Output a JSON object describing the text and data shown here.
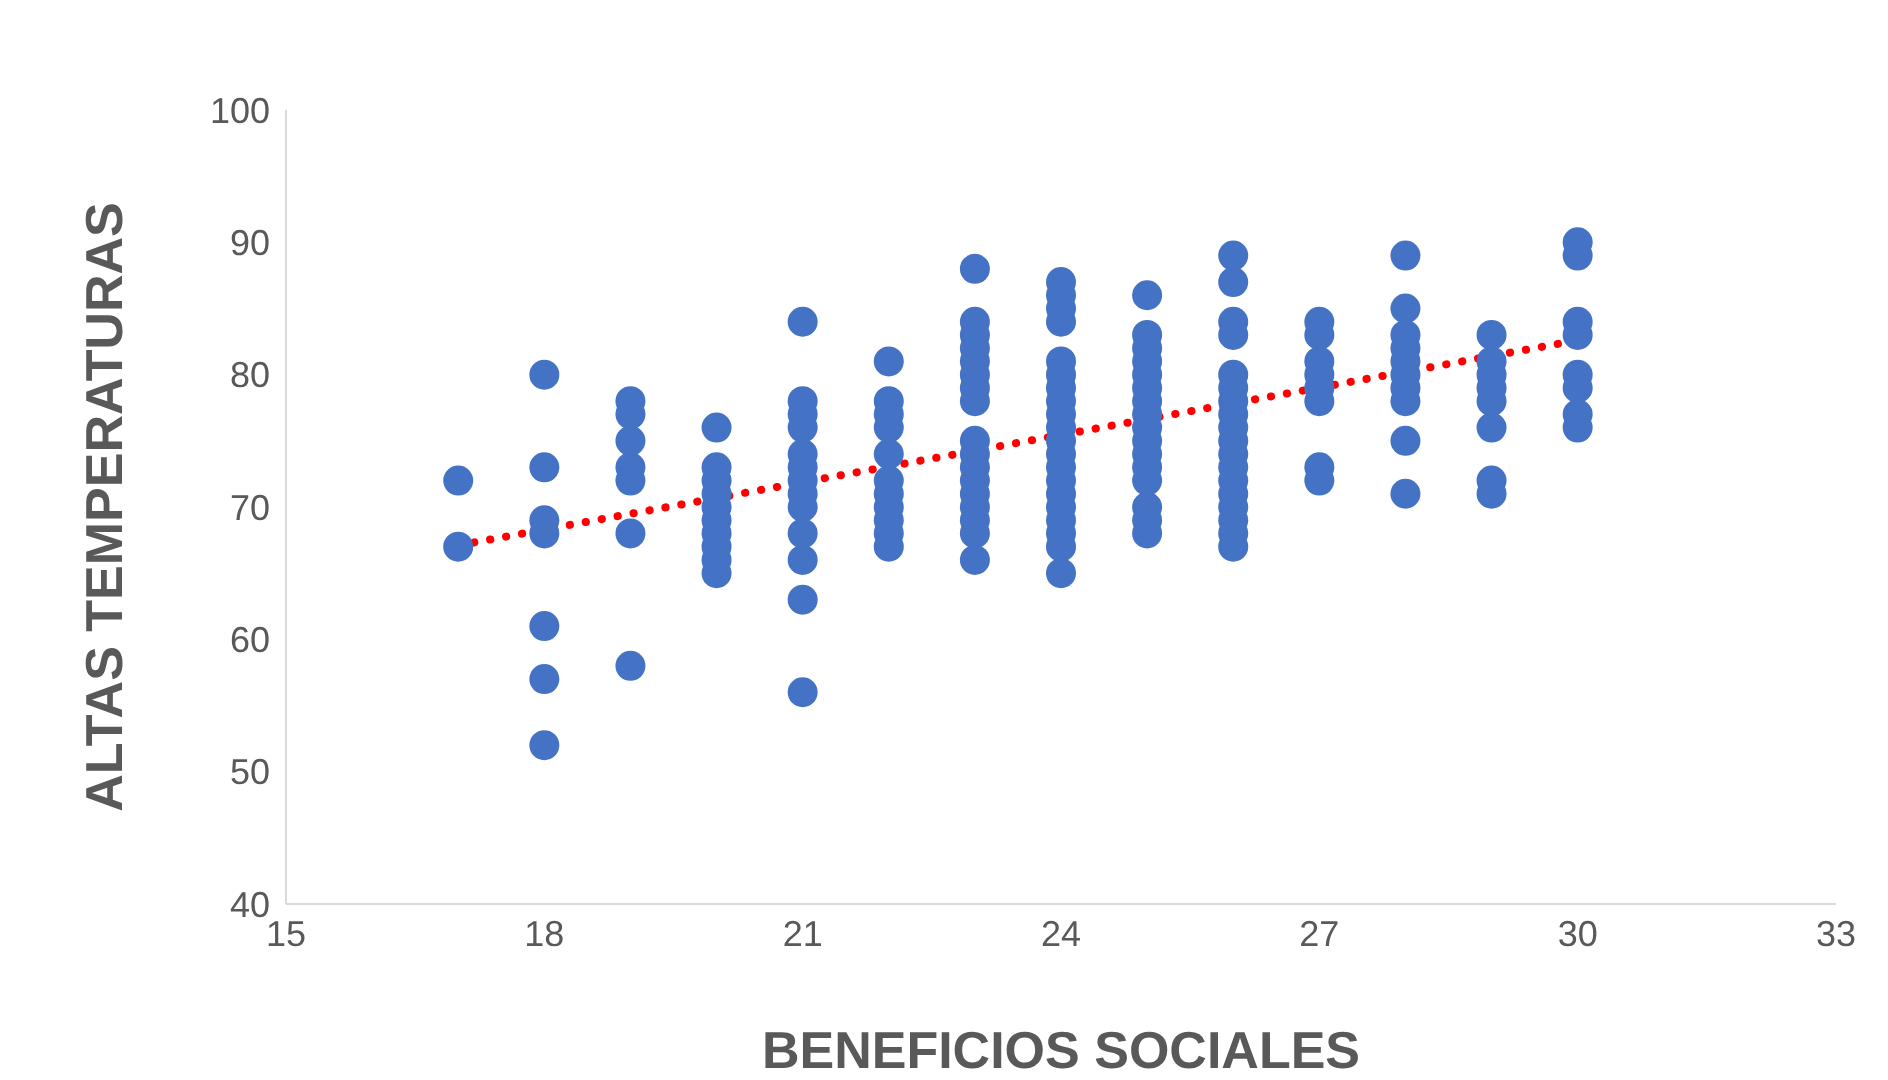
{
  "chart_data": {
    "type": "scatter",
    "xlabel": "BENEFICIOS SOCIALES",
    "ylabel": "ALTAS TEMPERATURAS",
    "xlim": [
      15,
      33
    ],
    "xticks": [
      15,
      18,
      21,
      24,
      27,
      30,
      33
    ],
    "ylim": [
      40,
      100
    ],
    "yticks": [
      40,
      50,
      60,
      70,
      80,
      90,
      100
    ],
    "marker": "circle",
    "series": [
      {
        "type": "scatter",
        "color": "#4472c4",
        "x": [
          17,
          17,
          18,
          18,
          18,
          18,
          18,
          18,
          18,
          19,
          19,
          19,
          19,
          19,
          19,
          19,
          20,
          20,
          20,
          20,
          20,
          20,
          20,
          20,
          20,
          20,
          21,
          21,
          21,
          21,
          21,
          21,
          21,
          21,
          21,
          21,
          21,
          21,
          21,
          22,
          22,
          22,
          22,
          22,
          22,
          22,
          22,
          22,
          22,
          22,
          23,
          23,
          23,
          23,
          23,
          23,
          23,
          23,
          23,
          23,
          23,
          23,
          23,
          23,
          23,
          23,
          23,
          24,
          24,
          24,
          24,
          24,
          24,
          24,
          24,
          24,
          24,
          24,
          24,
          24,
          24,
          24,
          24,
          24,
          24,
          24,
          24,
          25,
          25,
          25,
          25,
          25,
          25,
          25,
          25,
          25,
          25,
          25,
          25,
          25,
          25,
          25,
          25,
          26,
          26,
          26,
          26,
          26,
          26,
          26,
          26,
          26,
          26,
          26,
          26,
          26,
          26,
          26,
          26,
          26,
          26,
          27,
          27,
          27,
          27,
          27,
          27,
          27,
          27,
          28,
          28,
          28,
          28,
          28,
          28,
          28,
          28,
          28,
          28,
          29,
          29,
          29,
          29,
          29,
          29,
          29,
          29,
          30,
          30,
          30,
          30,
          30,
          30,
          30,
          30
        ],
        "values": [
          72,
          67,
          80,
          73,
          69,
          68,
          61,
          57,
          52,
          78,
          77,
          75,
          73,
          72,
          68,
          58,
          76,
          73,
          72,
          71,
          70,
          69,
          68,
          67,
          66,
          65,
          84,
          78,
          77,
          76,
          74,
          73,
          72,
          71,
          70,
          68,
          66,
          63,
          56,
          81,
          78,
          77,
          76,
          74,
          72,
          71,
          70,
          69,
          68,
          67,
          88,
          84,
          83,
          82,
          81,
          80,
          79,
          78,
          75,
          74,
          73,
          72,
          71,
          70,
          69,
          68,
          66,
          87,
          86,
          85,
          84,
          81,
          80,
          79,
          78,
          77,
          76,
          75,
          74,
          73,
          72,
          71,
          70,
          69,
          68,
          67,
          65,
          86,
          83,
          82,
          81,
          80,
          79,
          78,
          77,
          76,
          75,
          74,
          73,
          72,
          70,
          69,
          68,
          89,
          87,
          84,
          83,
          80,
          79,
          78,
          77,
          76,
          75,
          74,
          73,
          72,
          71,
          70,
          69,
          68,
          67,
          84,
          83,
          81,
          80,
          79,
          78,
          73,
          72,
          89,
          85,
          83,
          82,
          81,
          80,
          79,
          78,
          75,
          71,
          83,
          81,
          80,
          79,
          78,
          76,
          72,
          71,
          90,
          89,
          84,
          83,
          80,
          79,
          77,
          76
        ]
      },
      {
        "type": "line",
        "color": "#ff0000",
        "x": [
          17,
          30
        ],
        "values": [
          67.1,
          82.6
        ],
        "line_style": "dotted",
        "marker": "none"
      }
    ]
  }
}
